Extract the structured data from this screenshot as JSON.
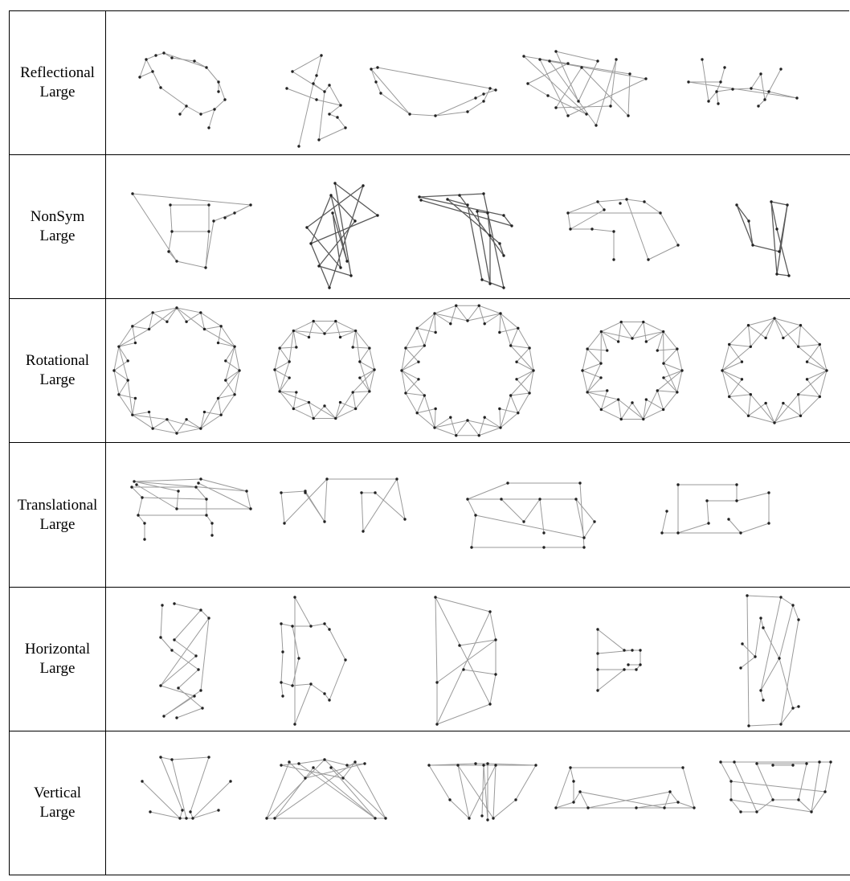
{
  "rows": [
    {
      "id": "reflectional",
      "label_line1": "Reflectional",
      "label_line2": "Large"
    },
    {
      "id": "nonsym",
      "label_line1": "NonSym",
      "label_line2": "Large"
    },
    {
      "id": "rotational",
      "label_line1": "Rotational",
      "label_line2": "Large"
    },
    {
      "id": "translational",
      "label_line1": "Translational",
      "label_line2": "Large"
    },
    {
      "id": "horizontal",
      "label_line1": "Horizontal",
      "label_line2": "Large"
    },
    {
      "id": "vertical",
      "label_line1": "Vertical",
      "label_line2": "Large"
    }
  ],
  "colors": {
    "edge": "#9a9a9a",
    "edge_dark": "#5a5a5a",
    "node": "#222222",
    "border": "#000000"
  }
}
